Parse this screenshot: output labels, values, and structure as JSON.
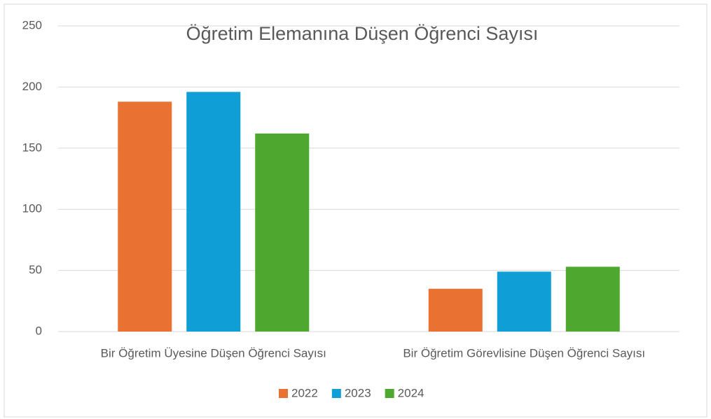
{
  "chart_data": {
    "type": "bar",
    "title": "Öğretim Elemanına Düşen Öğrenci Sayısı",
    "categories": [
      "Bir Öğretim Üyesine Düşen Öğrenci Sayısı",
      "Bir Öğretim Görevlisine Düşen Öğrenci Sayısı"
    ],
    "series": [
      {
        "name": "2022",
        "color": "#e97132",
        "values": [
          188,
          35
        ]
      },
      {
        "name": "2023",
        "color": "#0f9ed5",
        "values": [
          196,
          49
        ]
      },
      {
        "name": "2024",
        "color": "#4ea72e",
        "values": [
          162,
          53
        ]
      }
    ],
    "ylim": [
      0,
      250
    ],
    "yticks": [
      0,
      50,
      100,
      150,
      200,
      250
    ],
    "grid": true,
    "legend": "bottom"
  }
}
